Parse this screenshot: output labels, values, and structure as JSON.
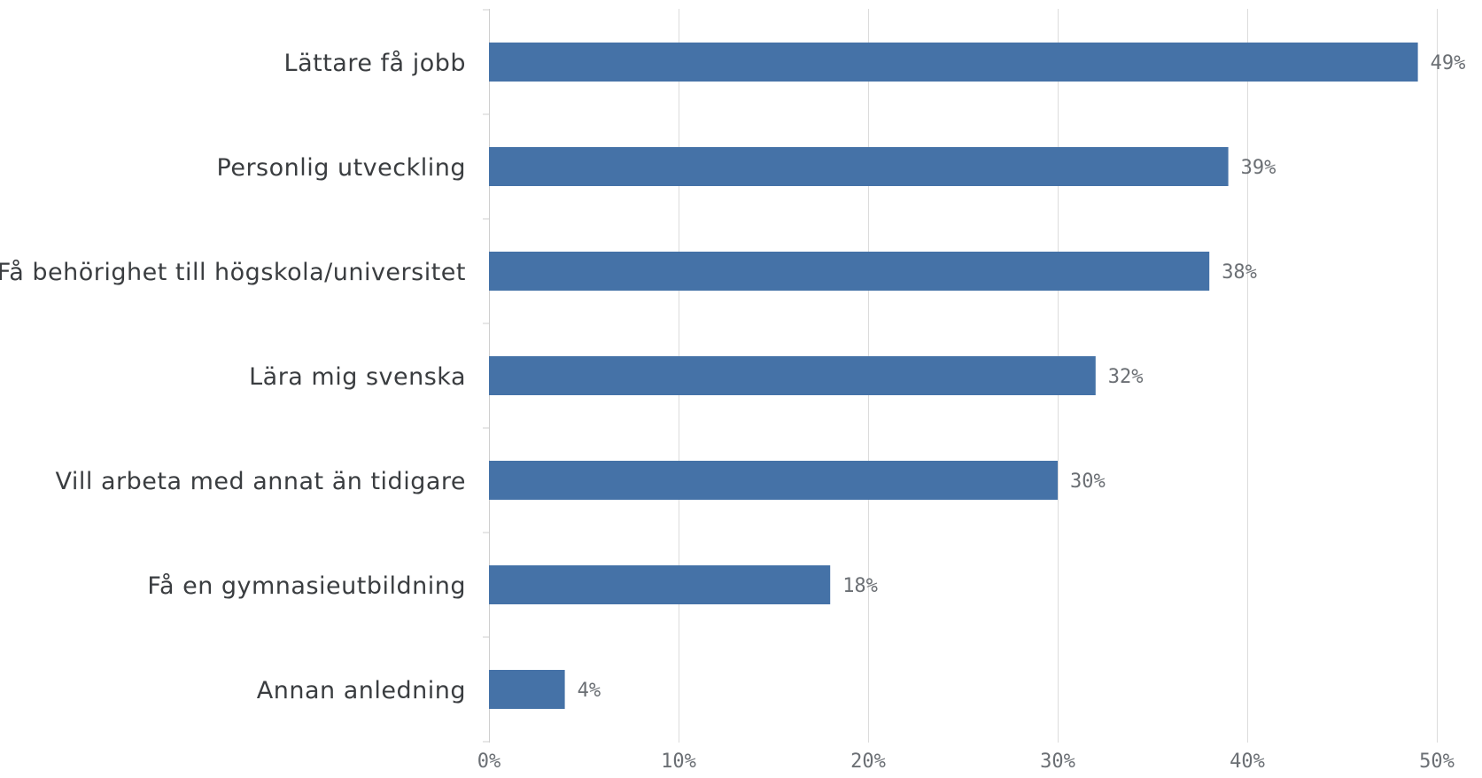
{
  "chart_data": {
    "type": "bar",
    "orientation": "horizontal",
    "categories": [
      "Lättare få jobb",
      "Personlig utveckling",
      "Få behörighet till högskola/universitet",
      "Lära mig svenska",
      "Vill arbeta med annat än tidigare",
      "Få en gymnasieutbildning",
      "Annan anledning"
    ],
    "values": [
      49,
      39,
      38,
      32,
      30,
      18,
      4
    ],
    "value_labels": [
      "49%",
      "39%",
      "38%",
      "32%",
      "30%",
      "18%",
      "4%"
    ],
    "xlim": [
      0,
      50
    ],
    "x_ticks": [
      0,
      10,
      20,
      30,
      40,
      50
    ],
    "x_tick_labels": [
      "0%",
      "10%",
      "20%",
      "30%",
      "40%",
      "50%"
    ],
    "title": "",
    "xlabel": "",
    "ylabel": "",
    "grid": "vertical",
    "legend": "none",
    "bar_color": "#4572a7"
  }
}
